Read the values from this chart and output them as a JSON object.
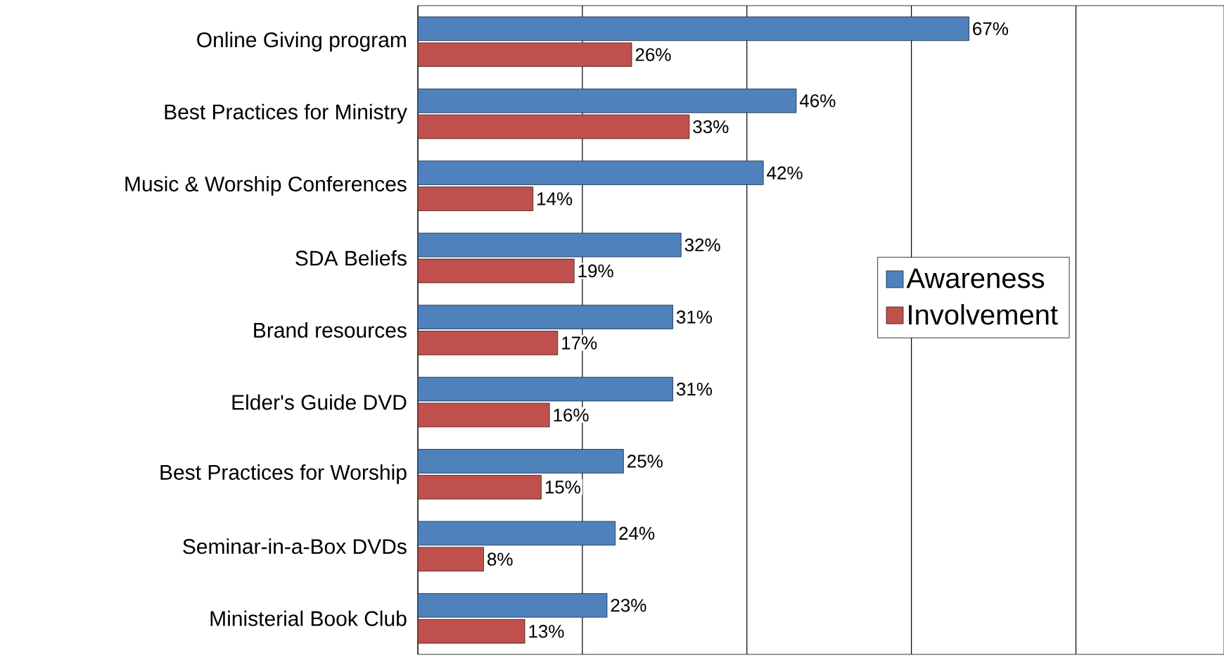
{
  "chart_data": {
    "type": "bar",
    "orientation": "horizontal",
    "categories": [
      "Online Giving program",
      "Best Practices for Ministry",
      "Music & Worship Conferences",
      "SDA Beliefs",
      "Brand resources",
      "Elder's Guide DVD",
      "Best Practices for Worship",
      "Seminar-in-a-Box DVDs",
      "Ministerial Book Club"
    ],
    "series": [
      {
        "name": "Awareness",
        "color": "#4f81bd",
        "values": [
          67,
          46,
          42,
          32,
          31,
          31,
          25,
          24,
          23
        ],
        "value_labels": [
          "67%",
          "46%",
          "42%",
          "32%",
          "31%",
          "31%",
          "25%",
          "24%",
          "23%"
        ]
      },
      {
        "name": "Involvement",
        "color": "#c0504d",
        "values": [
          26,
          33,
          14,
          19,
          17,
          16,
          15,
          8,
          13
        ],
        "value_labels": [
          "26%",
          "33%",
          "14%",
          "19%",
          "17%",
          "16%",
          "15%",
          "8%",
          "13%"
        ]
      }
    ],
    "xlim": [
      0,
      98
    ],
    "xticks": [
      {
        "value": 0,
        "label": null
      },
      {
        "value": 20,
        "label": null
      },
      {
        "value": 40,
        "label": null
      },
      {
        "value": 60,
        "label": null
      },
      {
        "value": 80,
        "label": null
      }
    ],
    "grid": "x",
    "legend": "right",
    "tick_labels": "y"
  }
}
